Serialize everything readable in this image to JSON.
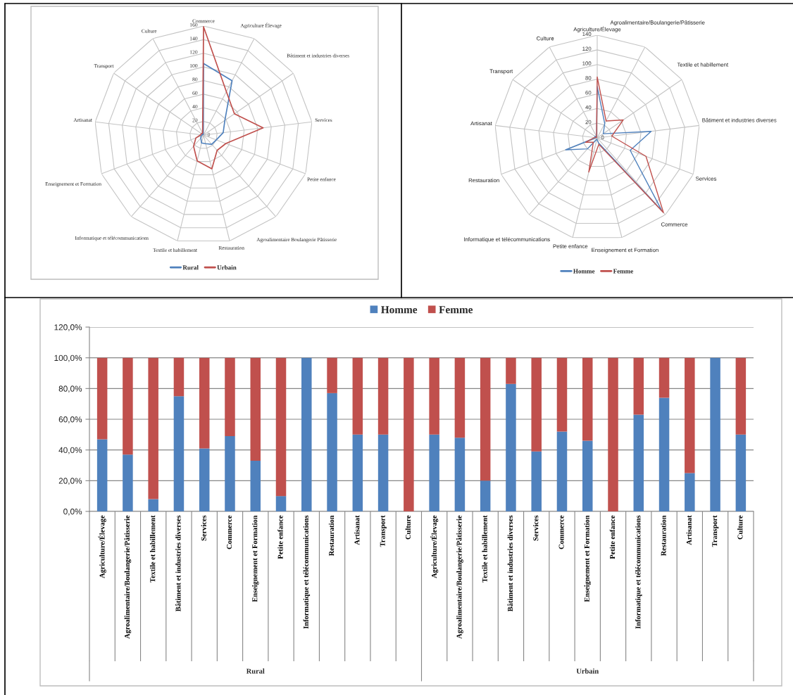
{
  "chart_data": [
    {
      "type": "radar",
      "categories": [
        "Commerce",
        "Agriculture Élevage",
        "Bâtiment et industries diverses",
        "Services",
        "Petite enfance",
        "Agroalimentaire Boulangerie Pâtisserie",
        "Restauration",
        "Textile et habillement",
        "Informatique et télécommunications",
        "Enseignement et Formation",
        "Artisanat",
        "Transport",
        "Culture"
      ],
      "series": [
        {
          "name": "Rural",
          "color": "#4f81bd",
          "values": [
            105,
            90,
            38,
            29,
            20,
            18,
            13,
            12,
            6,
            4,
            2,
            2,
            1
          ]
        },
        {
          "name": "Urbain",
          "color": "#c0504d",
          "values": [
            159,
            72,
            55,
            88,
            35,
            30,
            51,
            39,
            22,
            12,
            4,
            4,
            3
          ]
        }
      ],
      "ylim": [
        0,
        160
      ],
      "yticks": [
        0,
        20,
        40,
        60,
        80,
        100,
        120,
        140,
        160
      ],
      "grid": true,
      "legend": "bottom"
    },
    {
      "type": "radar",
      "categories": [
        "Agriculture/Élevage",
        "Agroalimentaire/Boulangerie/Pâtisserie",
        "Textile et habillement",
        "Bâtiment et industries diverses",
        "Services",
        "Commerce",
        "Enseignement et Formation",
        "Petite enfance",
        "Informatique et télécommunications",
        "Restauration",
        "Artisanat",
        "Transport",
        "Culture"
      ],
      "series": [
        {
          "name": "Homme",
          "color": "#4f81bd",
          "values": [
            70,
            22,
            10,
            74,
            48,
            133,
            7,
            2,
            20,
            46,
            2,
            4,
            2
          ]
        },
        {
          "name": "Femme",
          "color": "#c0504d",
          "values": [
            83,
            26,
            43,
            20,
            71,
            136,
            9,
            48,
            8,
            17,
            4,
            1,
            2
          ]
        }
      ],
      "ylim": [
        0,
        140
      ],
      "yticks": [
        0,
        20,
        40,
        60,
        80,
        100,
        120,
        140
      ],
      "grid": true,
      "legend": "bottom"
    },
    {
      "type": "bar",
      "stacked": true,
      "categories": [
        "Agriculture/Élevage",
        "Agroalimentaire/Boulangerie/Pâtisserie",
        "Textile et habillement",
        "Bâtiment et industries diverses",
        "Services",
        "Commerce",
        "Enseignement et Formation",
        "Petite enfance",
        "Informatique et télécommunications",
        "Restauration",
        "Artisanat",
        "Transport",
        "Culture",
        "Agriculture/Élevage",
        "Agroalimentaire/Boulangerie/Pâtisserie",
        "Textile et habillement",
        "Bâtiment et industries diverses",
        "Services",
        "Commerce",
        "Enseignement et Formation",
        "Petite enfance",
        "Informatique et télécommunications",
        "Restauration",
        "Artisanat",
        "Transport",
        "Culture"
      ],
      "series": [
        {
          "name": "Homme",
          "color": "#4f81bd",
          "values": [
            47,
            37,
            8,
            75,
            41,
            49,
            33,
            10,
            100,
            77,
            50,
            50,
            0,
            50,
            48,
            20,
            83,
            39,
            52,
            46,
            0,
            63,
            74,
            25,
            100,
            50
          ]
        },
        {
          "name": "Femme",
          "color": "#c0504d",
          "values": [
            53,
            63,
            92,
            25,
            59,
            51,
            67,
            90,
            0,
            23,
            50,
            50,
            100,
            50,
            52,
            80,
            17,
            61,
            48,
            54,
            100,
            37,
            26,
            75,
            0,
            50
          ]
        }
      ],
      "ylim": [
        0,
        120
      ],
      "yticks": [
        {
          "value": 0,
          "label": "0,0%"
        },
        {
          "value": 20,
          "label": "20,0%"
        },
        {
          "value": 40,
          "label": "40,0%"
        },
        {
          "value": 60,
          "label": "60,0%"
        },
        {
          "value": 80,
          "label": "80,0%"
        },
        {
          "value": 100,
          "label": "100,0%"
        },
        {
          "value": 120,
          "label": "120,0%"
        }
      ],
      "grid": "y",
      "legend": "top",
      "annotations": [
        "Rural",
        "Urbain"
      ]
    }
  ]
}
